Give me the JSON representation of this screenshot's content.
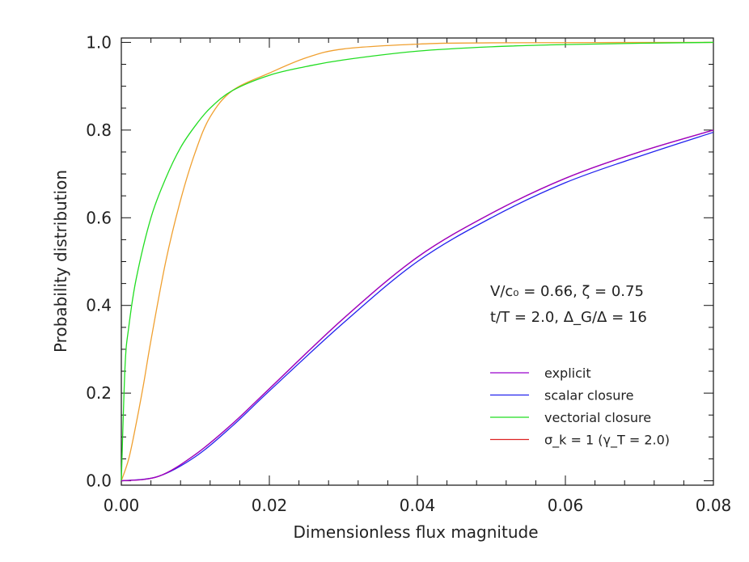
{
  "chart_data": {
    "type": "line",
    "xlabel": "Dimensionless flux magnitude",
    "ylabel": "Probability distribution",
    "xlim": [
      0.0,
      0.08
    ],
    "ylim": [
      -0.01,
      1.01
    ],
    "x_ticks": [
      "0.00",
      "0.02",
      "0.04",
      "0.06",
      "0.08"
    ],
    "y_ticks": [
      "0.0",
      "0.2",
      "0.4",
      "0.6",
      "0.8",
      "1.0"
    ],
    "grid": false,
    "annotations": [
      "V/c₀ = 0.66, ζ = 0.75",
      "t/T = 2.0, Δ_G/Δ = 16"
    ],
    "legend_position": "lower-right",
    "series": [
      {
        "name": "explicit",
        "color": "#9900cc",
        "x": [
          0,
          0.005,
          0.01,
          0.015,
          0.02,
          0.03,
          0.04,
          0.05,
          0.06,
          0.07,
          0.08
        ],
        "y": [
          0,
          0.01,
          0.06,
          0.13,
          0.21,
          0.37,
          0.51,
          0.61,
          0.69,
          0.75,
          0.8
        ]
      },
      {
        "name": "scalar closure",
        "color": "#2222ee",
        "x": [
          0,
          0.005,
          0.01,
          0.015,
          0.02,
          0.03,
          0.04,
          0.05,
          0.06,
          0.07,
          0.08
        ],
        "y": [
          0,
          0.01,
          0.055,
          0.125,
          0.205,
          0.36,
          0.5,
          0.6,
          0.68,
          0.74,
          0.795
        ]
      },
      {
        "name": "vectorial closure",
        "color": "#22dd22",
        "x": [
          0,
          0.0005,
          0.001,
          0.002,
          0.004,
          0.006,
          0.008,
          0.01,
          0.012,
          0.015,
          0.02,
          0.025,
          0.03,
          0.04,
          0.05,
          0.06,
          0.07,
          0.08
        ],
        "y": [
          0,
          0.26,
          0.35,
          0.46,
          0.6,
          0.69,
          0.76,
          0.81,
          0.85,
          0.89,
          0.925,
          0.945,
          0.96,
          0.98,
          0.99,
          0.995,
          0.998,
          1.0
        ]
      },
      {
        "name": "σ_k = 1 (γ_T = 2.0)",
        "color": "#dd2222",
        "x": [
          0,
          0.005,
          0.01,
          0.015,
          0.02,
          0.03,
          0.04,
          0.05,
          0.06,
          0.07,
          0.08
        ],
        "y": [
          0,
          0.01,
          0.06,
          0.13,
          0.21,
          0.37,
          0.51,
          0.61,
          0.69,
          0.75,
          0.8
        ]
      },
      {
        "name": "",
        "color": "#f0a030",
        "x": [
          0,
          0.001,
          0.002,
          0.003,
          0.004,
          0.006,
          0.008,
          0.01,
          0.012,
          0.015,
          0.02,
          0.025,
          0.03,
          0.04,
          0.05,
          0.08
        ],
        "y": [
          0,
          0.05,
          0.13,
          0.22,
          0.32,
          0.5,
          0.64,
          0.75,
          0.83,
          0.89,
          0.93,
          0.965,
          0.985,
          0.996,
          0.999,
          1.0
        ]
      }
    ]
  }
}
